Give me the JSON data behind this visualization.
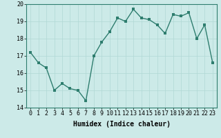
{
  "x": [
    0,
    1,
    2,
    3,
    4,
    5,
    6,
    7,
    8,
    9,
    10,
    11,
    12,
    13,
    14,
    15,
    16,
    17,
    18,
    19,
    20,
    21,
    22,
    23
  ],
  "y": [
    17.2,
    16.6,
    16.3,
    15.0,
    15.4,
    15.1,
    15.0,
    14.4,
    17.0,
    17.8,
    18.4,
    19.2,
    19.0,
    19.7,
    19.2,
    19.1,
    18.8,
    18.3,
    19.4,
    19.3,
    19.5,
    18.0,
    18.8,
    16.6
  ],
  "line_color": "#2e7d6e",
  "bg_color": "#cceae8",
  "grid_color": "#b0d8d5",
  "xlabel": "Humidex (Indice chaleur)",
  "ylim": [
    14,
    20
  ],
  "xlim": [
    -0.5,
    23.5
  ],
  "yticks": [
    14,
    15,
    16,
    17,
    18,
    19,
    20
  ],
  "xticks": [
    0,
    1,
    2,
    3,
    4,
    5,
    6,
    7,
    8,
    9,
    10,
    11,
    12,
    13,
    14,
    15,
    16,
    17,
    18,
    19,
    20,
    21,
    22,
    23
  ],
  "xlabel_fontsize": 7,
  "tick_fontsize": 6,
  "marker_size": 2.5,
  "line_width": 1.0
}
